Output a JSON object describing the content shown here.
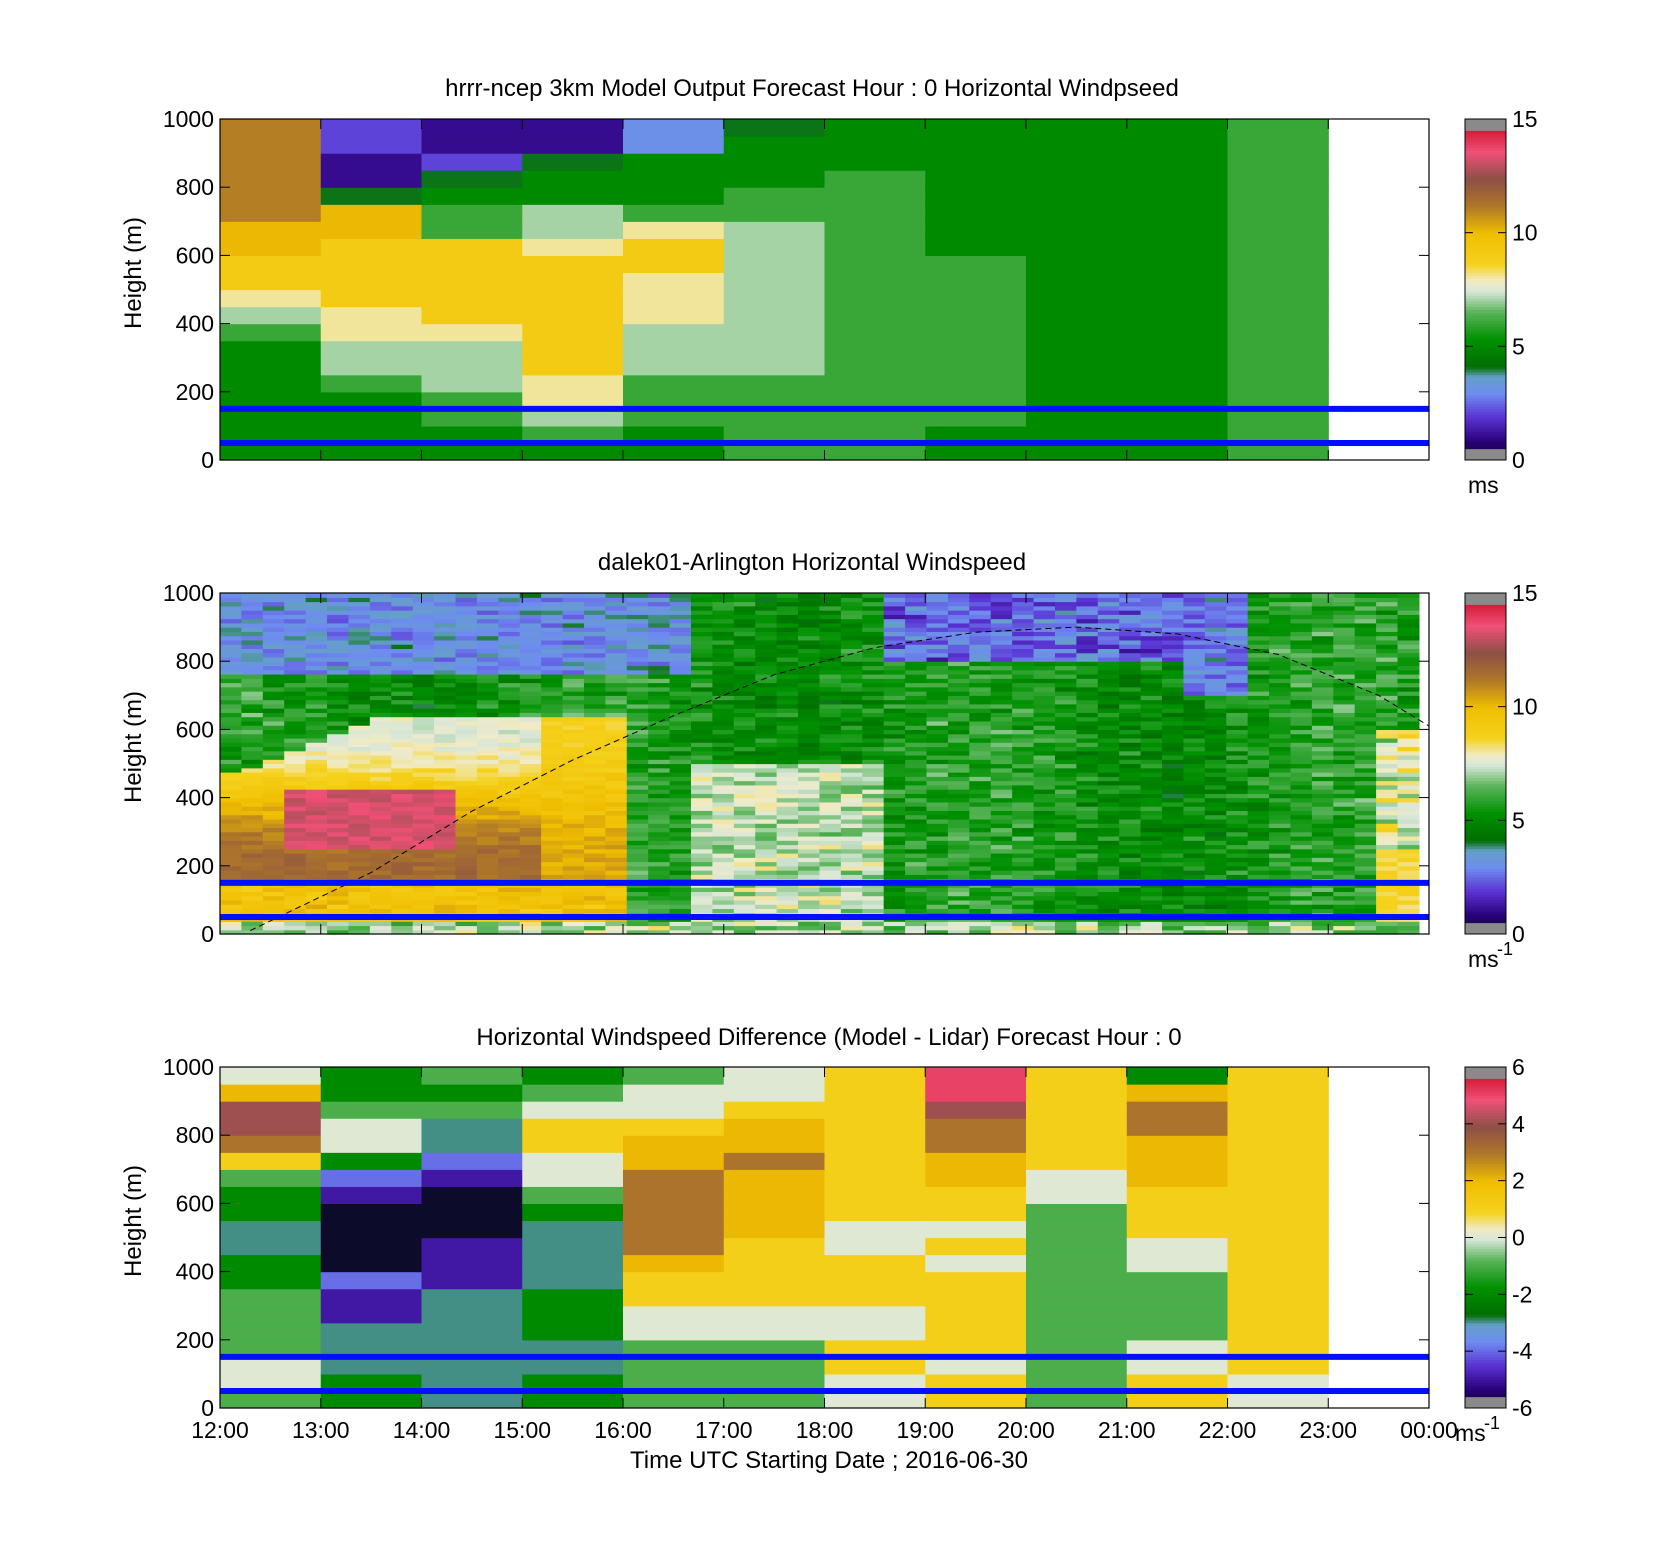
{
  "chart_data": [
    {
      "type": "heatmap",
      "id": "model",
      "title": "hrrr-ncep 3km Model Output   Forecast Hour : 0 Horizontal Windpseed",
      "ylabel": "Height (m)",
      "xlabel": "",
      "ylim": [
        0,
        1000
      ],
      "yticks": [
        "0",
        "200",
        "400",
        "600",
        "800",
        "1000"
      ],
      "xticks": [
        "12:00",
        "13:00",
        "14:00",
        "15:00",
        "16:00",
        "17:00",
        "18:00",
        "19:00",
        "20:00",
        "21:00",
        "22:00",
        "23:00",
        "00:00"
      ],
      "show_xtick_labels": false,
      "colorbar": {
        "ticks": [
          "0",
          "5",
          "10",
          "15"
        ],
        "range": [
          0,
          15
        ],
        "unit": "ms",
        "unit_sup": ""
      },
      "reference_heights": [
        50,
        150
      ],
      "columns": [
        [
          5,
          5,
          5,
          5,
          5,
          5,
          5,
          6,
          7,
          8,
          9,
          9,
          10,
          10,
          11,
          11,
          11,
          11,
          11,
          11
        ],
        [
          5,
          5,
          5,
          5,
          6,
          7,
          7,
          8,
          8,
          9,
          9,
          9,
          9,
          10,
          10,
          4,
          1,
          1,
          2,
          2
        ],
        [
          5,
          5,
          6,
          6,
          7,
          7,
          7,
          8,
          9,
          9,
          9,
          9,
          9,
          6,
          6,
          5,
          4,
          2,
          1,
          1
        ],
        [
          5,
          6,
          7,
          8,
          8,
          9,
          9,
          9,
          9,
          9,
          9,
          9,
          8,
          7,
          7,
          5,
          5,
          4,
          1,
          1
        ],
        [
          5,
          5,
          6,
          6,
          6,
          7,
          7,
          7,
          8,
          8,
          8,
          9,
          9,
          8,
          6,
          5,
          5,
          5,
          3,
          3
        ],
        [
          6,
          6,
          6,
          6,
          6,
          7,
          7,
          7,
          7,
          7,
          7,
          7,
          7,
          7,
          6,
          6,
          5,
          5,
          5,
          4
        ],
        [
          6,
          6,
          6,
          6,
          6,
          6,
          6,
          6,
          6,
          6,
          6,
          6,
          6,
          6,
          6,
          6,
          6,
          5,
          5,
          5
        ],
        [
          5,
          5,
          6,
          6,
          6,
          6,
          6,
          6,
          6,
          6,
          6,
          6,
          5,
          5,
          5,
          5,
          5,
          5,
          5,
          5
        ],
        [
          5,
          5,
          5,
          5,
          5,
          5,
          5,
          5,
          5,
          5,
          5,
          5,
          5,
          5,
          5,
          5,
          5,
          5,
          5,
          5
        ],
        [
          5,
          5,
          5,
          5,
          5,
          5,
          5,
          5,
          5,
          5,
          5,
          5,
          5,
          5,
          5,
          5,
          5,
          5,
          5,
          5
        ],
        [
          6,
          6,
          6,
          6,
          6,
          6,
          6,
          6,
          6,
          6,
          6,
          6,
          6,
          6,
          6,
          6,
          6,
          6,
          6,
          6
        ]
      ]
    },
    {
      "type": "heatmap",
      "id": "lidar",
      "title": "dalek01-Arlington  Horizontal Windspeed",
      "ylabel": "Height (m)",
      "xlabel": "",
      "ylim": [
        0,
        1000
      ],
      "yticks": [
        "0",
        "200",
        "400",
        "600",
        "800",
        "1000"
      ],
      "xticks": [
        "12:00",
        "13:00",
        "14:00",
        "15:00",
        "16:00",
        "17:00",
        "18:00",
        "19:00",
        "20:00",
        "21:00",
        "22:00",
        "23:00",
        "00:00"
      ],
      "show_xtick_labels": false,
      "colorbar": {
        "ticks": [
          "0",
          "5",
          "10",
          "15"
        ],
        "range": [
          0,
          15
        ],
        "unit": "ms",
        "unit_sup": "-1"
      },
      "reference_heights": [
        50,
        150
      ],
      "curve": {
        "style": "dashed",
        "x_hours": [
          12.3,
          13.5,
          14.5,
          15.5,
          16.5,
          17.5,
          18.5,
          19.5,
          20.5,
          21.5,
          22.5,
          23.5,
          24.0
        ],
        "heights": [
          10,
          180,
          360,
          510,
          640,
          760,
          840,
          885,
          900,
          880,
          820,
          700,
          610
        ]
      }
    },
    {
      "type": "heatmap",
      "id": "diff",
      "title": "Horizontal Windspeed Difference (Model - Lidar) Forecast Hour : 0",
      "ylabel": "Height (m)",
      "xlabel": "Time UTC  Starting Date ; 2016-06-30",
      "ylim": [
        0,
        1000
      ],
      "yticks": [
        "0",
        "200",
        "400",
        "600",
        "800",
        "1000"
      ],
      "xticks": [
        "12:00",
        "13:00",
        "14:00",
        "15:00",
        "16:00",
        "17:00",
        "18:00",
        "19:00",
        "20:00",
        "21:00",
        "22:00",
        "23:00",
        "00:00"
      ],
      "show_xtick_labels": true,
      "colorbar": {
        "ticks": [
          "-6",
          "-4",
          "-2",
          "0",
          "2",
          "4",
          "6"
        ],
        "range": [
          -6,
          6
        ],
        "unit": "ms",
        "unit_sup": "-1"
      },
      "reference_heights": [
        50,
        150
      ],
      "columns": [
        [
          -1,
          0,
          0,
          -1,
          -1,
          -1,
          -1,
          -2,
          -2,
          -3,
          -3,
          -2,
          -2,
          -1,
          1,
          3,
          4,
          4,
          2,
          0
        ],
        [
          -2,
          -2,
          -3,
          -3,
          -3,
          -5,
          -5,
          -4,
          -6,
          -6,
          -6,
          -6,
          -5,
          -4,
          -2,
          0,
          0,
          -1,
          -2,
          -2
        ],
        [
          -3,
          -3,
          -3,
          -3,
          -3,
          -3,
          -3,
          -5,
          -5,
          -5,
          -6,
          -6,
          -6,
          -5,
          -4,
          -3,
          -3,
          -1,
          -2,
          -1
        ],
        [
          -2,
          -2,
          -3,
          -3,
          -2,
          -2,
          -2,
          -3,
          -3,
          -3,
          -3,
          -2,
          -1,
          0,
          0,
          1,
          1,
          0,
          -1,
          -2
        ],
        [
          -1,
          -1,
          -1,
          -1,
          0,
          0,
          1,
          1,
          2,
          3,
          3,
          3,
          3,
          3,
          2,
          2,
          1,
          0,
          0,
          -1
        ],
        [
          -1,
          -1,
          -1,
          -1,
          0,
          0,
          1,
          1,
          1,
          1,
          2,
          2,
          2,
          2,
          3,
          2,
          2,
          1,
          0,
          0
        ],
        [
          0,
          0,
          1,
          1,
          0,
          0,
          1,
          1,
          1,
          0,
          0,
          1,
          1,
          1,
          1,
          1,
          1,
          1,
          1,
          1
        ],
        [
          1,
          1,
          0,
          1,
          1,
          1,
          1,
          1,
          0,
          1,
          0,
          1,
          1,
          2,
          2,
          3,
          3,
          4,
          5,
          5
        ],
        [
          -1,
          -1,
          -1,
          -1,
          -1,
          -1,
          -1,
          -1,
          -1,
          -1,
          -1,
          -1,
          0,
          0,
          1,
          1,
          1,
          1,
          1,
          1
        ],
        [
          1,
          1,
          0,
          0,
          -1,
          -1,
          -1,
          -1,
          0,
          0,
          1,
          1,
          1,
          2,
          2,
          2,
          3,
          3,
          2,
          -2
        ],
        [
          0,
          0,
          1,
          1,
          1,
          1,
          1,
          1,
          1,
          1,
          1,
          1,
          1,
          1,
          1,
          1,
          1,
          1,
          1,
          1
        ]
      ]
    }
  ]
}
